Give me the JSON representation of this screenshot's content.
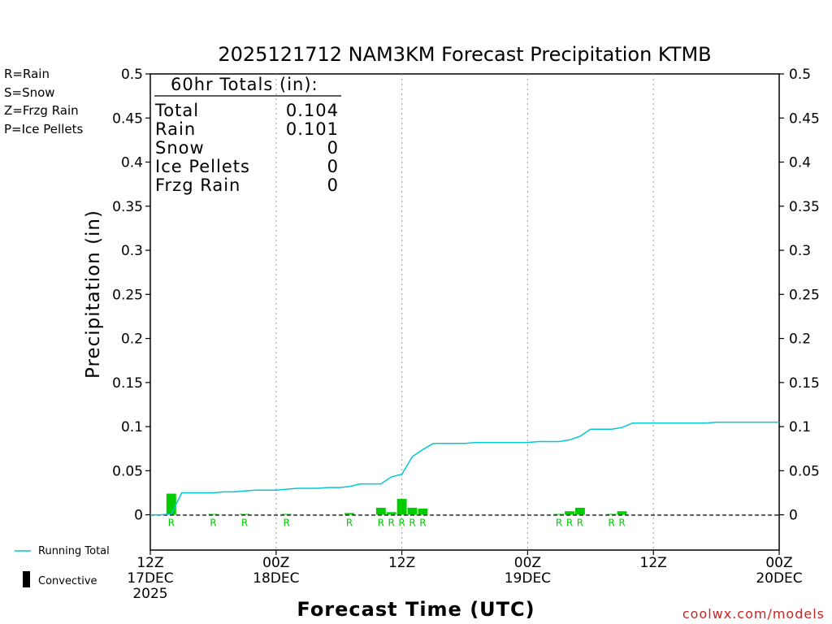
{
  "chart_data": {
    "type": "bar",
    "title": "2025121712 NAM3KM Forecast Precipitation KTMB",
    "ylabel": "Precipitation (in)",
    "xlabel": "Forecast Time (UTC)",
    "ylim": [
      -0.04,
      0.5
    ],
    "xlim_hours": [
      0,
      60
    ],
    "yticks": [
      0,
      0.05,
      0.1,
      0.15,
      0.2,
      0.25,
      0.3,
      0.35,
      0.4,
      0.45,
      0.5
    ],
    "ytick_labels": [
      "0",
      "0.05",
      "0.1",
      "0.15",
      "0.2",
      "0.25",
      "0.3",
      "0.35",
      "0.4",
      "0.45",
      "0.5"
    ],
    "xticks": [
      {
        "hour": 0,
        "lines": [
          "12Z",
          "17DEC",
          "2025"
        ]
      },
      {
        "hour": 12,
        "lines": [
          "00Z",
          "18DEC"
        ]
      },
      {
        "hour": 24,
        "lines": [
          "12Z"
        ]
      },
      {
        "hour": 36,
        "lines": [
          "00Z",
          "19DEC"
        ]
      },
      {
        "hour": 48,
        "lines": [
          "12Z"
        ]
      },
      {
        "hour": 60,
        "lines": [
          "00Z",
          "20DEC"
        ]
      }
    ],
    "legend": [
      {
        "label": "R=Rain",
        "color": "#00cc00"
      },
      {
        "label": "S=Snow",
        "color": "#3333dd"
      },
      {
        "label": "Z=Frzg Rain",
        "color": "#ee8833"
      },
      {
        "label": "P=Ice Pellets",
        "color": "#ee2288"
      }
    ],
    "totals": {
      "header": "60hr Totals (in):",
      "rows": [
        {
          "label": "Total",
          "value": "0.104"
        },
        {
          "label": "Rain",
          "value": "0.101"
        },
        {
          "label": "Snow",
          "value": "0"
        },
        {
          "label": "Ice Pellets",
          "value": "0"
        },
        {
          "label": "Frzg Rain",
          "value": "0"
        }
      ]
    },
    "series": [
      {
        "name": "Running Total",
        "type": "line",
        "color": "#00c8d2",
        "x": [
          0,
          1,
          2,
          3,
          4,
          5,
          6,
          7,
          8,
          9,
          10,
          11,
          12,
          13,
          14,
          15,
          16,
          17,
          18,
          19,
          20,
          21,
          22,
          23,
          24,
          25,
          26,
          27,
          28,
          29,
          30,
          31,
          32,
          33,
          34,
          35,
          36,
          37,
          38,
          39,
          40,
          41,
          42,
          43,
          44,
          45,
          46,
          47,
          48,
          49,
          50,
          51,
          52,
          53,
          54,
          55,
          56,
          57,
          58,
          59,
          60
        ],
        "y": [
          0,
          0,
          0.001,
          0.025,
          0.025,
          0.025,
          0.025,
          0.026,
          0.026,
          0.027,
          0.028,
          0.028,
          0.028,
          0.029,
          0.03,
          0.03,
          0.03,
          0.031,
          0.031,
          0.032,
          0.035,
          0.035,
          0.035,
          0.043,
          0.046,
          0.066,
          0.074,
          0.081,
          0.081,
          0.081,
          0.081,
          0.082,
          0.082,
          0.082,
          0.082,
          0.082,
          0.082,
          0.083,
          0.083,
          0.083,
          0.085,
          0.089,
          0.097,
          0.097,
          0.097,
          0.099,
          0.104,
          0.104,
          0.104,
          0.104,
          0.104,
          0.104,
          0.104,
          0.104,
          0.105,
          0.105,
          0.105,
          0.105,
          0.105,
          0.105,
          0.105
        ]
      },
      {
        "name": "Precipitation",
        "type": "bar",
        "color": "#00cc00",
        "x": [
          2,
          6,
          9,
          13,
          19,
          22,
          23,
          24,
          25,
          26,
          39,
          40,
          41,
          44,
          45
        ],
        "y": [
          0.024,
          0.001,
          0.001,
          0.001,
          0.002,
          0.008,
          0.003,
          0.018,
          0.008,
          0.007,
          0.001,
          0.004,
          0.008,
          0.001,
          0.004
        ],
        "ptype": [
          "R",
          "R",
          "R",
          "R",
          "R",
          "R",
          "R",
          "R",
          "R",
          "R",
          "R",
          "R",
          "R",
          "R",
          "R"
        ]
      }
    ],
    "bottom_legend": [
      {
        "label": "Running Total",
        "color": "#00c8d2",
        "kind": "line"
      },
      {
        "label": "Convective",
        "color": "#000000",
        "kind": "bar"
      }
    ],
    "credit": "coolwx.com/models"
  }
}
